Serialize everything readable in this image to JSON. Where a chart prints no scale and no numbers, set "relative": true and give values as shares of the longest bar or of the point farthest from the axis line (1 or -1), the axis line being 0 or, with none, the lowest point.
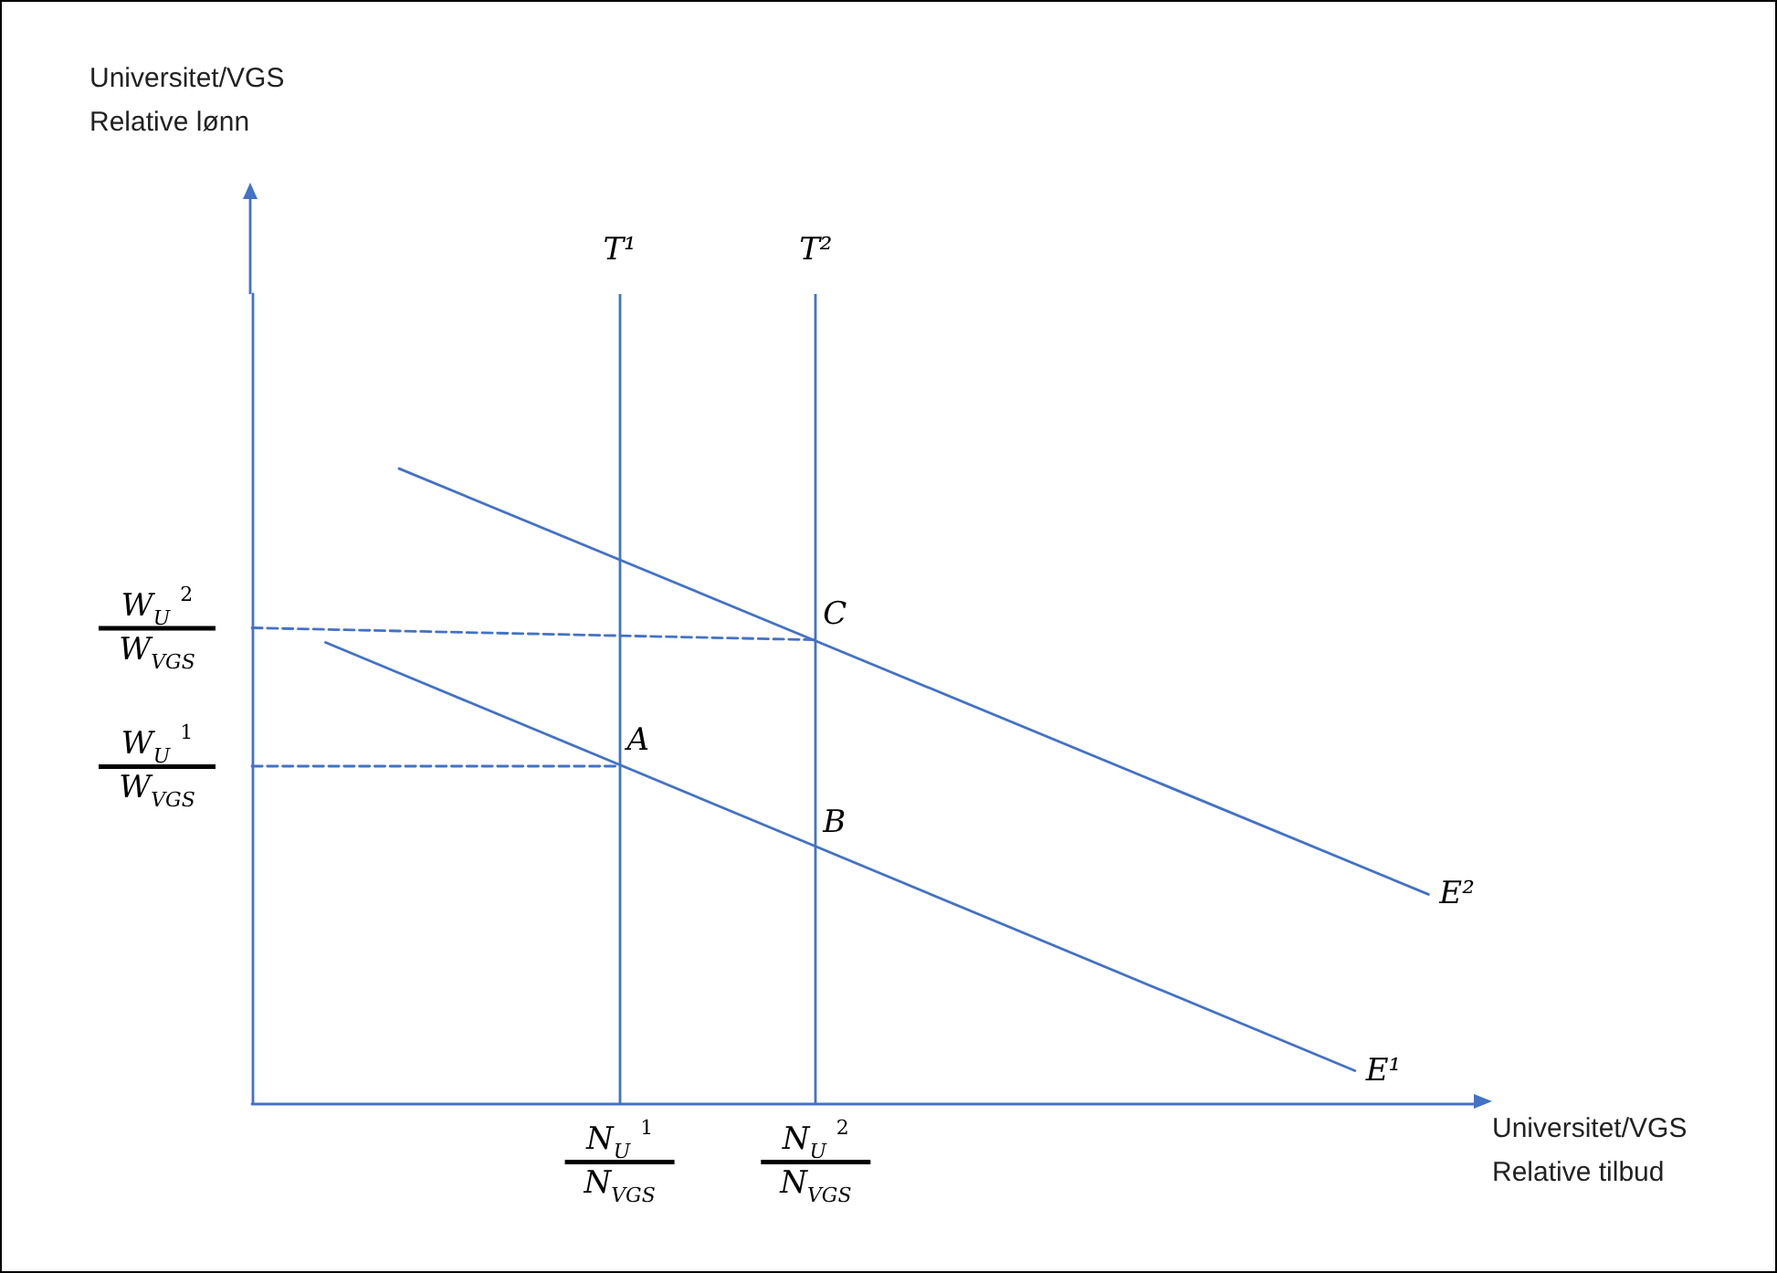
{
  "chart_data": {
    "type": "line",
    "relative": true,
    "tick_labels": "x",
    "xlabel": "Universitet/VGS\nRelative tilbud",
    "categories": [
      null,
      null,
      null,
      null,
      null,
      null,
      null,
      null,
      null,
      null,
      null,
      null,
      null,
      null,
      null,
      "N$_{U}$ $^{1}$\nN$_{VGS}$",
      null,
      null,
      null,
      null,
      null,
      null,
      null,
      "N$_{U}$ $^{2}$\nN$_{VGS}$",
      null,
      null,
      null,
      null,
      null,
      null,
      null,
      null,
      null,
      null,
      null,
      null,
      null,
      null,
      null,
      null,
      null,
      null,
      null,
      null,
      null,
      null,
      null,
      null,
      null,
      null,
      null
    ],
    "grid": false,
    "legend": false,
    "series": [
      {
        "name": "E¹",
        "color": "#4472c4",
        "values": [
          null,
          null,
          null,
          0.726,
          null,
          null,
          null,
          null,
          null,
          null,
          null,
          null,
          null,
          null,
          null,
          null,
          null,
          null,
          null,
          null,
          null,
          null,
          null,
          null,
          null,
          null,
          null,
          null,
          null,
          null,
          null,
          null,
          null,
          null,
          null,
          null,
          null,
          null,
          null,
          null,
          null,
          null,
          null,
          null,
          null,
          0.051,
          null,
          null,
          null,
          null,
          null
        ]
      },
      {
        "name": "E²",
        "color": "#4472c4",
        "values": [
          null,
          null,
          null,
          null,
          null,
          null,
          1,
          null,
          null,
          null,
          null,
          null,
          null,
          null,
          null,
          null,
          null,
          null,
          null,
          null,
          null,
          null,
          null,
          null,
          null,
          null,
          null,
          null,
          null,
          null,
          null,
          null,
          null,
          null,
          null,
          null,
          null,
          null,
          null,
          null,
          null,
          null,
          null,
          null,
          null,
          null,
          null,
          null,
          0.329,
          null,
          null
        ]
      },
      {
        "name": "W$_{U}$ $^{2}$\nW$_{VGS}$",
        "color": "#4472c4",
        "line_style": "dashed",
        "values": [
          0.749,
          null,
          null,
          null,
          null,
          null,
          null,
          null,
          null,
          null,
          null,
          null,
          null,
          null,
          null,
          null,
          null,
          null,
          null,
          null,
          null,
          null,
          null,
          0.73,
          null,
          null,
          null,
          null,
          null,
          null,
          null,
          null,
          null,
          null,
          null,
          null,
          null,
          null,
          null,
          null,
          null,
          null,
          null,
          null,
          null,
          null,
          null,
          null,
          null,
          null,
          null
        ]
      },
      {
        "name": "W$_{U}$ $^{1}$\nW$_{VGS}$",
        "color": "#4472c4",
        "line_style": "dashed",
        "values": [
          0.531,
          null,
          null,
          null,
          null,
          null,
          null,
          null,
          null,
          null,
          null,
          null,
          null,
          null,
          null,
          0.531,
          null,
          null,
          null,
          null,
          null,
          null,
          null,
          null,
          null,
          null,
          null,
          null,
          null,
          null,
          null,
          null,
          null,
          null,
          null,
          null,
          null,
          null,
          null,
          null,
          null,
          null,
          null,
          null,
          null,
          null,
          null,
          null,
          null,
          null,
          null
        ]
      }
    ],
    "ref_lines": [
      {
        "axis": "x",
        "value": "N$_{U}$ $^{1}$\nN$_{VGS}$",
        "label": "T¹",
        "color": "#4472c4"
      },
      {
        "axis": "x",
        "value": "N$_{U}$ $^{2}$\nN$_{VGS}$",
        "label": "T²",
        "color": "#4472c4"
      }
    ],
    "annotations": [
      {
        "text": "A",
        "x": "N$_{U}$ $^{1}$\nN$_{VGS}$",
        "y": 0.531
      },
      {
        "text": "B",
        "x": "N$_{U}$ $^{2}$\nN$_{VGS}$",
        "y": 0.401
      },
      {
        "text": "C",
        "x": "N$_{U}$ $^{2}$\nN$_{VGS}$",
        "y": 0.73
      },
      "Universitet/VGS\nRelative lønn"
    ]
  }
}
